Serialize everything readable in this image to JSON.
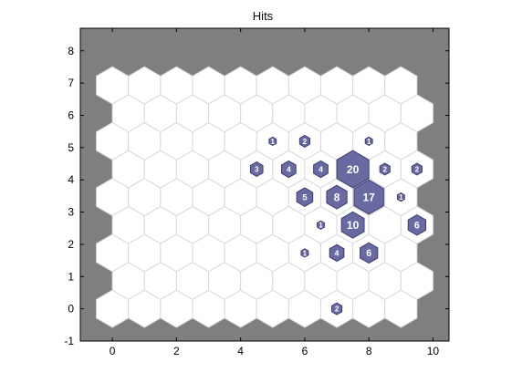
{
  "chart_data": {
    "type": "hexagonal-grid",
    "title": "Hits",
    "xlabel": "",
    "ylabel": "",
    "xlim": [
      -1,
      10.5
    ],
    "ylim": [
      -1,
      8.7
    ],
    "xticks": [
      0,
      2,
      4,
      6,
      8,
      10
    ],
    "yticks": [
      -1,
      0,
      1,
      2,
      3,
      4,
      5,
      6,
      7,
      8
    ],
    "grid": {
      "columns": 10,
      "rows": 9,
      "max_count": 20
    },
    "hits": [
      {
        "x": 7,
        "y": 0,
        "count": 2
      },
      {
        "x": 6,
        "y": 1.732,
        "count": 1
      },
      {
        "x": 7,
        "y": 1.732,
        "count": 4
      },
      {
        "x": 8,
        "y": 1.732,
        "count": 6
      },
      {
        "x": 6.5,
        "y": 2.598,
        "count": 1
      },
      {
        "x": 7.5,
        "y": 2.598,
        "count": 10
      },
      {
        "x": 9.5,
        "y": 2.598,
        "count": 6
      },
      {
        "x": 6,
        "y": 3.464,
        "count": 5
      },
      {
        "x": 7,
        "y": 3.464,
        "count": 8
      },
      {
        "x": 8,
        "y": 3.464,
        "count": 17
      },
      {
        "x": 9,
        "y": 3.464,
        "count": 1
      },
      {
        "x": 4.5,
        "y": 4.33,
        "count": 3
      },
      {
        "x": 5.5,
        "y": 4.33,
        "count": 4
      },
      {
        "x": 6.5,
        "y": 4.33,
        "count": 4
      },
      {
        "x": 7.5,
        "y": 4.33,
        "count": 20
      },
      {
        "x": 8.5,
        "y": 4.33,
        "count": 2
      },
      {
        "x": 9.5,
        "y": 4.33,
        "count": 2
      },
      {
        "x": 5,
        "y": 5.196,
        "count": 1
      },
      {
        "x": 6,
        "y": 5.196,
        "count": 2
      },
      {
        "x": 8,
        "y": 5.196,
        "count": 1
      }
    ],
    "colors": {
      "background": "#7f7f7f",
      "hex_fill": "#ffffff",
      "hex_edge": "#d9d9d9",
      "hit_fill": "#6a6aa2",
      "hit_edge": "#3d3d70",
      "hit_text": "#ffffff"
    }
  }
}
